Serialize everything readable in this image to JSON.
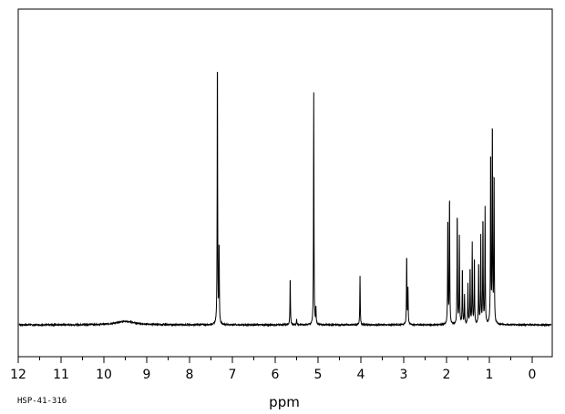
{
  "sample_code": "HSP-41-316",
  "chart_data": {
    "type": "line",
    "title": "",
    "xlabel": "ppm",
    "ylabel": "",
    "xlim": [
      12,
      -0.5
    ],
    "x_reversed": true,
    "ylim": [
      0,
      1
    ],
    "grid": false,
    "ticks": [
      "12",
      "11",
      "10",
      "9",
      "8",
      "7",
      "6",
      "5",
      "4",
      "3",
      "2",
      "1",
      "0"
    ],
    "tick_values": [
      12,
      11,
      10,
      9,
      8,
      7,
      6,
      5,
      4,
      3,
      2,
      1,
      0
    ],
    "series": [
      {
        "peaks": [
          {
            "ppm": 9.5,
            "height": 0.012
          },
          {
            "ppm": 7.35,
            "height": 0.96
          },
          {
            "ppm": 7.31,
            "height": 0.28
          },
          {
            "ppm": 5.65,
            "height": 0.17
          },
          {
            "ppm": 5.5,
            "height": 0.02
          },
          {
            "ppm": 5.1,
            "height": 0.8
          },
          {
            "ppm": 5.05,
            "height": 0.06
          },
          {
            "ppm": 4.02,
            "height": 0.17
          },
          {
            "ppm": 2.93,
            "height": 0.25
          },
          {
            "ppm": 2.9,
            "height": 0.12
          },
          {
            "ppm": 1.97,
            "height": 0.38
          },
          {
            "ppm": 1.93,
            "height": 0.46
          },
          {
            "ppm": 1.75,
            "height": 0.4
          },
          {
            "ppm": 1.7,
            "height": 0.3
          },
          {
            "ppm": 1.63,
            "height": 0.2
          },
          {
            "ppm": 1.58,
            "height": 0.1
          },
          {
            "ppm": 1.5,
            "height": 0.14
          },
          {
            "ppm": 1.45,
            "height": 0.2
          },
          {
            "ppm": 1.4,
            "height": 0.28
          },
          {
            "ppm": 1.35,
            "height": 0.24
          },
          {
            "ppm": 1.25,
            "height": 0.22
          },
          {
            "ppm": 1.2,
            "height": 0.3
          },
          {
            "ppm": 1.15,
            "height": 0.38
          },
          {
            "ppm": 1.1,
            "height": 0.4
          },
          {
            "ppm": 0.97,
            "height": 0.62
          },
          {
            "ppm": 0.93,
            "height": 0.72
          },
          {
            "ppm": 0.89,
            "height": 0.54
          }
        ]
      }
    ]
  }
}
